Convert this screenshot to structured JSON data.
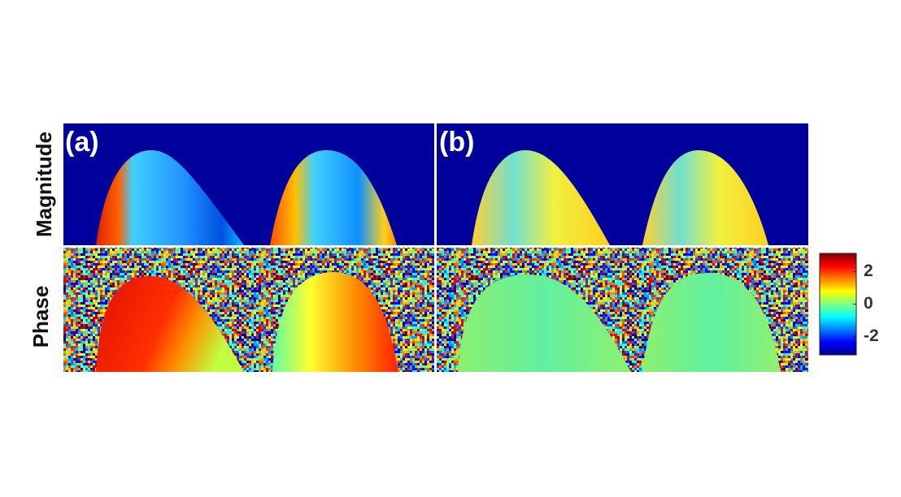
{
  "figure": {
    "panels": [
      {
        "label": "(a)"
      },
      {
        "label": "(b)"
      }
    ],
    "rows": [
      "Magnitude",
      "Phase"
    ],
    "colorbar": {
      "limits": [
        -3.14,
        3.14
      ],
      "ticks": [
        2,
        0,
        -2
      ],
      "colormap": "jet"
    }
  }
}
